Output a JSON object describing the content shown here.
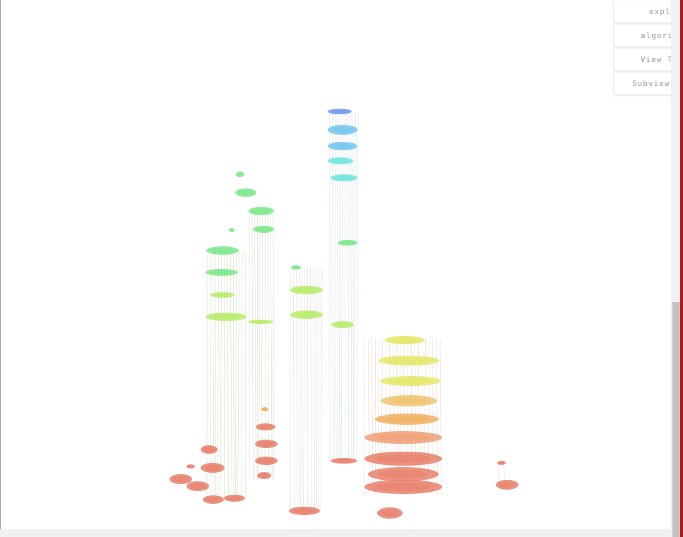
{
  "menu": {
    "items": [
      {
        "label": "expl",
        "name": "explore"
      },
      {
        "label": "algori",
        "name": "algorithm"
      },
      {
        "label": "View T",
        "name": "view"
      },
      {
        "label": "Subview",
        "name": "subview"
      }
    ]
  },
  "colors": {
    "red": "#e8806a",
    "orange": "#f0b060",
    "yellow": "#e4e86a",
    "lime": "#b8ec6a",
    "green": "#7ee88c",
    "cyan": "#6fe6e0",
    "sky": "#74c6f0",
    "blue": "#6e98ee",
    "scrollbar_accent": "#b3151b"
  }
}
